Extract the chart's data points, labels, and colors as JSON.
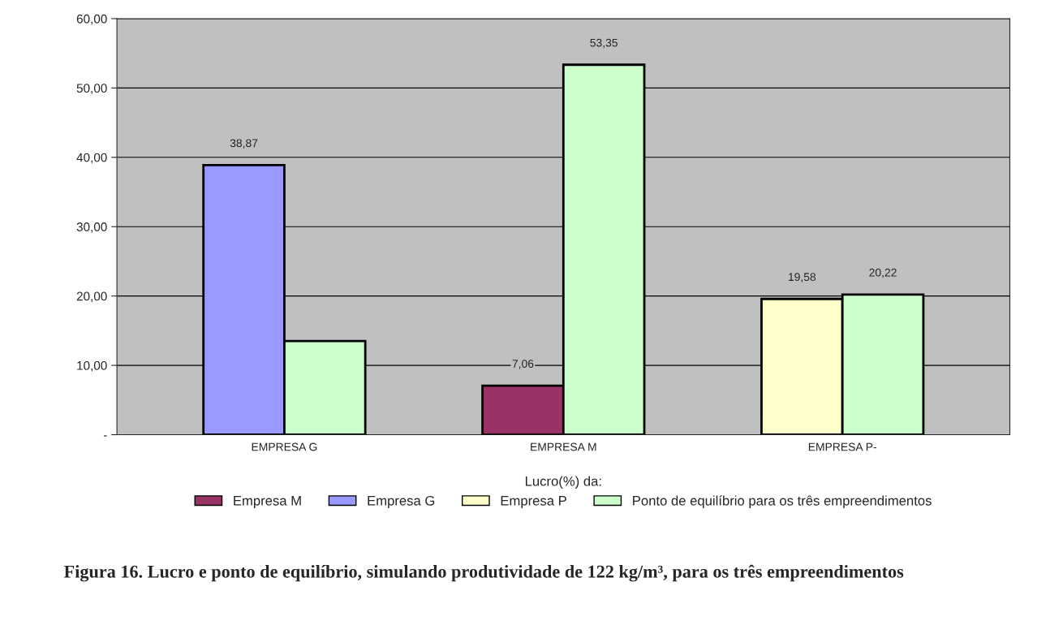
{
  "chart_data": {
    "type": "bar",
    "categories": [
      "EMPRESA G",
      "EMPRESA M",
      "EMPRESA P-"
    ],
    "series": [
      {
        "name": "Empresa M",
        "color": "#993366",
        "values": [
          null,
          7.06,
          null
        ],
        "value_labels": [
          null,
          "7,06",
          null
        ]
      },
      {
        "name": "Empresa G",
        "color": "#9999ff",
        "values": [
          38.87,
          null,
          null
        ],
        "value_labels": [
          "38,87",
          null,
          null
        ]
      },
      {
        "name": "Empresa P",
        "color": "#ffffcc",
        "values": [
          null,
          null,
          19.58
        ],
        "value_labels": [
          null,
          null,
          "19,58"
        ]
      },
      {
        "name": "Ponto de equilíbrio para os três empreendimentos",
        "color": "#ccffcc",
        "values": [
          13.5,
          53.35,
          20.22
        ],
        "value_labels": [
          null,
          "53,35",
          "20,22"
        ]
      }
    ],
    "legend_title": "Lucro(%) da:",
    "legend": "bottom",
    "grid": "y",
    "ylim": [
      0,
      60
    ],
    "yticks": [
      {
        "value": 0,
        "label": "-"
      },
      {
        "value": 10,
        "label": "10,00"
      },
      {
        "value": 20,
        "label": "20,00"
      },
      {
        "value": 30,
        "label": "30,00"
      },
      {
        "value": 40,
        "label": "40,00"
      },
      {
        "value": 50,
        "label": "50,00"
      },
      {
        "value": 60,
        "label": "60,00"
      }
    ],
    "annotations": [
      "Figura 16. Lucro e ponto de equilíbrio, simulando produtividade de 122 kg/m³, para os três empreendimentos"
    ]
  }
}
